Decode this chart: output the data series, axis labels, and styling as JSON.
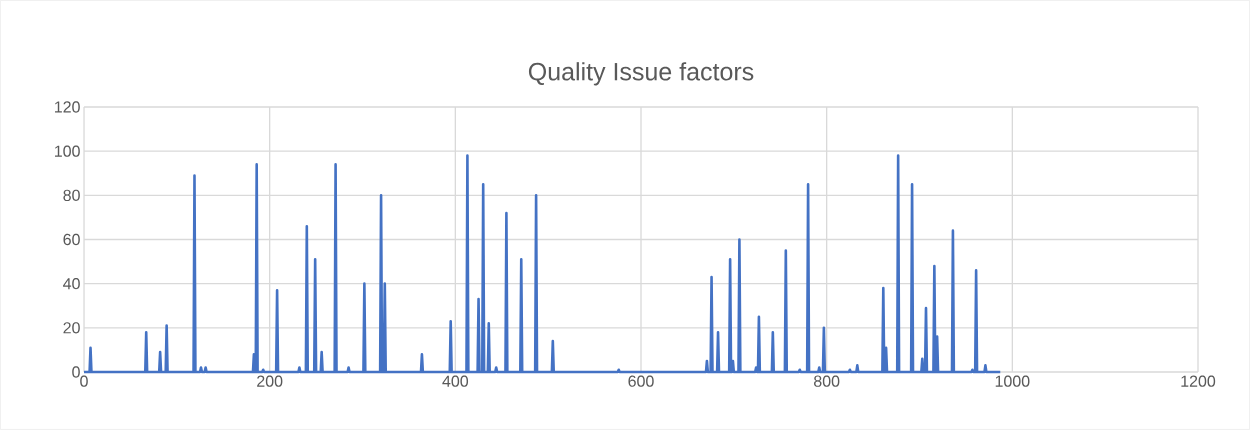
{
  "chart_data": {
    "type": "line",
    "title": "Quality Issue factors",
    "color": "#4472c4",
    "grid": true,
    "marker": "none",
    "xlim": [
      0,
      1200
    ],
    "xticks": [
      0,
      200,
      400,
      600,
      800,
      1000,
      1200
    ],
    "ylim": [
      0,
      120
    ],
    "yticks": [
      0,
      20,
      40,
      60,
      80,
      100,
      120
    ],
    "x": [
      0,
      6,
      7,
      8,
      66,
      67,
      68,
      81,
      82,
      83,
      88,
      89,
      90,
      118,
      119,
      120,
      125,
      126,
      127,
      130,
      131,
      132,
      182,
      183,
      184,
      185,
      186,
      187,
      192,
      193,
      194,
      207,
      208,
      209,
      231,
      232,
      233,
      239,
      240,
      241,
      248,
      249,
      250,
      255,
      256,
      257,
      270,
      271,
      272,
      284,
      285,
      286,
      301,
      302,
      303,
      319,
      320,
      321,
      323,
      324,
      325,
      363,
      364,
      365,
      394,
      395,
      396,
      412,
      413,
      414,
      424,
      425,
      426,
      429,
      430,
      431,
      435,
      436,
      437,
      443,
      444,
      445,
      454,
      455,
      456,
      470,
      471,
      472,
      486,
      487,
      488,
      504,
      505,
      506,
      575,
      576,
      577,
      670,
      671,
      672,
      675,
      676,
      677,
      682,
      683,
      684,
      695,
      696,
      697,
      698,
      699,
      700,
      705,
      706,
      707,
      723,
      724,
      725,
      726,
      727,
      728,
      741,
      742,
      743,
      755,
      756,
      757,
      770,
      771,
      772,
      779,
      780,
      781,
      791,
      792,
      793,
      796,
      797,
      798,
      824,
      825,
      826,
      832,
      833,
      834,
      860,
      861,
      862,
      863,
      864,
      865,
      876,
      877,
      878,
      891,
      892,
      893,
      902,
      903,
      904,
      906,
      907,
      908,
      915,
      916,
      917,
      918,
      919,
      920,
      935,
      936,
      937,
      956,
      957,
      958,
      960,
      961,
      962,
      970,
      971,
      972,
      987
    ],
    "values": [
      0,
      0,
      11,
      0,
      0,
      18,
      0,
      0,
      9,
      0,
      0,
      21,
      0,
      0,
      89,
      0,
      0,
      2,
      0,
      0,
      2,
      0,
      0,
      8,
      0,
      0,
      94,
      0,
      0,
      1,
      0,
      0,
      37,
      0,
      0,
      2,
      0,
      0,
      66,
      0,
      0,
      51,
      0,
      0,
      9,
      0,
      0,
      94,
      0,
      0,
      2,
      0,
      0,
      40,
      0,
      0,
      80,
      0,
      0,
      40,
      0,
      0,
      8,
      0,
      0,
      23,
      0,
      0,
      98,
      0,
      0,
      33,
      0,
      0,
      85,
      0,
      0,
      22,
      0,
      0,
      2,
      0,
      0,
      72,
      0,
      0,
      51,
      0,
      0,
      80,
      0,
      0,
      14,
      0,
      0,
      1,
      0,
      0,
      5,
      0,
      0,
      43,
      0,
      0,
      18,
      0,
      0,
      51,
      0,
      0,
      5,
      0,
      0,
      60,
      0,
      0,
      2,
      0,
      0,
      25,
      0,
      0,
      18,
      0,
      0,
      55,
      0,
      0,
      1,
      0,
      0,
      85,
      0,
      0,
      2,
      0,
      0,
      20,
      0,
      0,
      1,
      0,
      0,
      3,
      0,
      0,
      38,
      0,
      0,
      11,
      0,
      0,
      98,
      0,
      0,
      85,
      0,
      0,
      6,
      0,
      0,
      29,
      0,
      0,
      48,
      0,
      0,
      16,
      0,
      0,
      64,
      0,
      0,
      1,
      0,
      0,
      46,
      0,
      0,
      3,
      0,
      0
    ]
  }
}
